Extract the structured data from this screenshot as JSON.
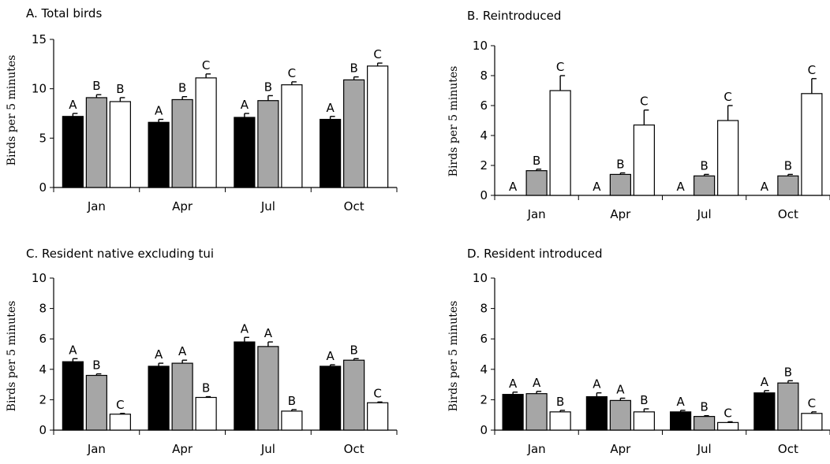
{
  "colors": {
    "black_bar": "#000000",
    "gray_bar": "#a6a6a6",
    "white_bar": "#ffffff",
    "axis": "#000000"
  },
  "chart_data": [
    {
      "type": "bar",
      "title": "A. Total birds",
      "ylabel": "Birds per 5 minutes",
      "ylim": [
        0,
        15
      ],
      "yticks": [
        "0",
        "5",
        "10",
        "15"
      ],
      "categories": [
        "Jan",
        "Apr",
        "Jul",
        "Oct"
      ],
      "series": [
        {
          "color": "#000000",
          "values": [
            7.2,
            6.6,
            7.1,
            6.9
          ],
          "errors": [
            0.3,
            0.3,
            0.4,
            0.3
          ],
          "letters": [
            "A",
            "A",
            "A",
            "A"
          ]
        },
        {
          "color": "#a6a6a6",
          "values": [
            9.1,
            8.9,
            8.8,
            10.9
          ],
          "errors": [
            0.3,
            0.3,
            0.5,
            0.3
          ],
          "letters": [
            "B",
            "B",
            "B",
            "B"
          ]
        },
        {
          "color": "#ffffff",
          "values": [
            8.7,
            11.1,
            10.4,
            12.3
          ],
          "errors": [
            0.4,
            0.4,
            0.3,
            0.3
          ],
          "letters": [
            "B",
            "C",
            "C",
            "C"
          ]
        }
      ]
    },
    {
      "type": "bar",
      "title": "B. Reintroduced",
      "ylabel": "Birds per 5 minutes",
      "ylim": [
        0,
        10
      ],
      "yticks": [
        "0",
        "2",
        "4",
        "6",
        "8",
        "10"
      ],
      "categories": [
        "Jan",
        "Apr",
        "Jul",
        "Oct"
      ],
      "series": [
        {
          "color": "#000000",
          "values": [
            0,
            0,
            0,
            0
          ],
          "errors": [
            0,
            0,
            0,
            0
          ],
          "letters": [
            "A",
            "A",
            "A",
            "A"
          ]
        },
        {
          "color": "#a6a6a6",
          "values": [
            1.65,
            1.4,
            1.3,
            1.3
          ],
          "errors": [
            0.1,
            0.1,
            0.1,
            0.1
          ],
          "letters": [
            "B",
            "B",
            "B",
            "B"
          ]
        },
        {
          "color": "#ffffff",
          "values": [
            7.0,
            4.7,
            5.0,
            6.8
          ],
          "errors": [
            1.0,
            1.0,
            1.0,
            1.0
          ],
          "letters": [
            "C",
            "C",
            "C",
            "C"
          ]
        }
      ]
    },
    {
      "type": "bar",
      "title": "C. Resident native excluding tui",
      "ylabel": "Birds per 5 minutes",
      "ylim": [
        0,
        10
      ],
      "yticks": [
        "0",
        "2",
        "4",
        "6",
        "8",
        "10"
      ],
      "categories": [
        "Jan",
        "Apr",
        "Jul",
        "Oct"
      ],
      "series": [
        {
          "color": "#000000",
          "values": [
            4.5,
            4.2,
            5.8,
            4.2
          ],
          "errors": [
            0.2,
            0.2,
            0.3,
            0.1
          ],
          "letters": [
            "A",
            "A",
            "A",
            "A"
          ]
        },
        {
          "color": "#a6a6a6",
          "values": [
            3.6,
            4.4,
            5.5,
            4.6
          ],
          "errors": [
            0.1,
            0.2,
            0.3,
            0.1
          ],
          "letters": [
            "B",
            "A",
            "A",
            "B"
          ]
        },
        {
          "color": "#ffffff",
          "values": [
            1.05,
            2.15,
            1.25,
            1.8
          ],
          "errors": [
            0.05,
            0.05,
            0.1,
            0.05
          ],
          "letters": [
            "C",
            "B",
            "B",
            "C"
          ]
        }
      ]
    },
    {
      "type": "bar",
      "title": "D. Resident introduced",
      "ylabel": "Birds per 5 minutes",
      "ylim": [
        0,
        10
      ],
      "yticks": [
        "0",
        "2",
        "4",
        "6",
        "8",
        "10"
      ],
      "categories": [
        "Jan",
        "Apr",
        "Jul",
        "Oct"
      ],
      "series": [
        {
          "color": "#000000",
          "values": [
            2.35,
            2.2,
            1.2,
            2.45
          ],
          "errors": [
            0.15,
            0.25,
            0.1,
            0.15
          ],
          "letters": [
            "A",
            "A",
            "A",
            "A"
          ]
        },
        {
          "color": "#a6a6a6",
          "values": [
            2.4,
            1.95,
            0.9,
            3.1
          ],
          "errors": [
            0.15,
            0.15,
            0.05,
            0.15
          ],
          "letters": [
            "A",
            "A",
            "B",
            "B"
          ]
        },
        {
          "color": "#ffffff",
          "values": [
            1.2,
            1.2,
            0.5,
            1.1
          ],
          "errors": [
            0.1,
            0.2,
            0.05,
            0.1
          ],
          "letters": [
            "B",
            "B",
            "C",
            "C"
          ]
        }
      ]
    }
  ]
}
